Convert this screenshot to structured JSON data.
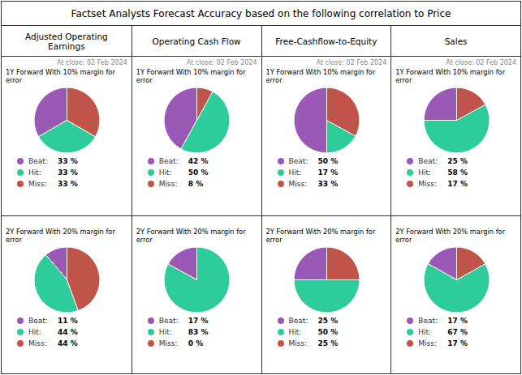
{
  "title": "Factset Analysts Forecast Accuracy based on the following correlation to Price",
  "chart_data": [
    {
      "type": "pie",
      "title": "Adjusted Operating\nEarnings",
      "categories": [
        "Beat:",
        "Hit:",
        "Miss:"
      ],
      "colors": [
        "#9B59B6",
        "#2ECC9A",
        "#C0544A"
      ],
      "annotations": [
        "At close: 02 Feb 2024"
      ],
      "data_labels": true,
      "series": [
        {
          "name": "1Y Forward With 10% margin for\nerror",
          "values": [
            33,
            33,
            33
          ],
          "value_labels": [
            "33 %",
            "33 %",
            "33 %"
          ]
        },
        {
          "name": "2Y Forward With 20% margin for\nerror",
          "values": [
            11,
            44,
            44
          ],
          "value_labels": [
            "11 %",
            "44 %",
            "44 %"
          ]
        }
      ]
    },
    {
      "type": "pie",
      "title": "Operating Cash Flow",
      "categories": [
        "Beat:",
        "Hit:",
        "Miss:"
      ],
      "colors": [
        "#9B59B6",
        "#2ECC9A",
        "#C0544A"
      ],
      "annotations": [
        "At close: 02 Feb 2024"
      ],
      "data_labels": true,
      "series": [
        {
          "name": "1Y Forward With 10% margin for\nerror",
          "values": [
            42,
            50,
            8
          ],
          "value_labels": [
            "42 %",
            "50 %",
            "8 %"
          ]
        },
        {
          "name": "2Y Forward With 20% margin for\nerror",
          "values": [
            17,
            83,
            0
          ],
          "value_labels": [
            "17 %",
            "83 %",
            "0 %"
          ]
        }
      ]
    },
    {
      "type": "pie",
      "title": "Free-Cashflow-to-Equity",
      "categories": [
        "Beat:",
        "Hit:",
        "Miss:"
      ],
      "colors": [
        "#9B59B6",
        "#2ECC9A",
        "#C0544A"
      ],
      "annotations": [
        "At close: 02 Feb 2024"
      ],
      "data_labels": true,
      "series": [
        {
          "name": "1Y Forward With 10% margin for\nerror",
          "values": [
            50,
            17,
            33
          ],
          "value_labels": [
            "50 %",
            "17 %",
            "33 %"
          ]
        },
        {
          "name": "2Y Forward With 20% margin for\nerror",
          "values": [
            25,
            50,
            25
          ],
          "value_labels": [
            "25 %",
            "50 %",
            "25 %"
          ]
        }
      ]
    },
    {
      "type": "pie",
      "title": "Sales",
      "categories": [
        "Beat:",
        "Hit:",
        "Miss:"
      ],
      "colors": [
        "#9B59B6",
        "#2ECC9A",
        "#C0544A"
      ],
      "annotations": [
        "At close: 02 Feb 2024"
      ],
      "data_labels": true,
      "series": [
        {
          "name": "1Y Forward With 10% margin for\nerror",
          "values": [
            25,
            58,
            17
          ],
          "value_labels": [
            "25 %",
            "58 %",
            "17 %"
          ]
        },
        {
          "name": "2Y Forward With 20% margin for\nerror",
          "values": [
            17,
            67,
            17
          ],
          "value_labels": [
            "17 %",
            "67 %",
            "17 %"
          ]
        }
      ]
    }
  ]
}
